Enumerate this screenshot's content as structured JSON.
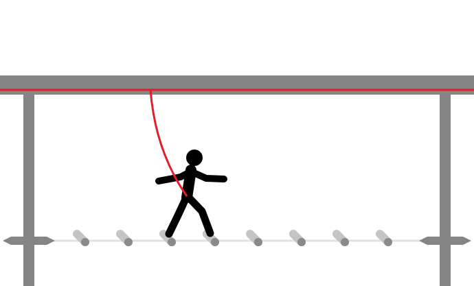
{
  "colors": {
    "background": "#ffffff",
    "beam": "#858585",
    "post": "#858585",
    "safety_line": "#e01f2b",
    "figure": "#000000",
    "rung": "#c4c4c4",
    "rung_end": "#8a8a8a",
    "foot_cable": "#e2e2e2",
    "platform": "#858585"
  },
  "icons": {
    "walker": "walking-person-icon",
    "lanyard": "safety-lanyard-icon"
  }
}
